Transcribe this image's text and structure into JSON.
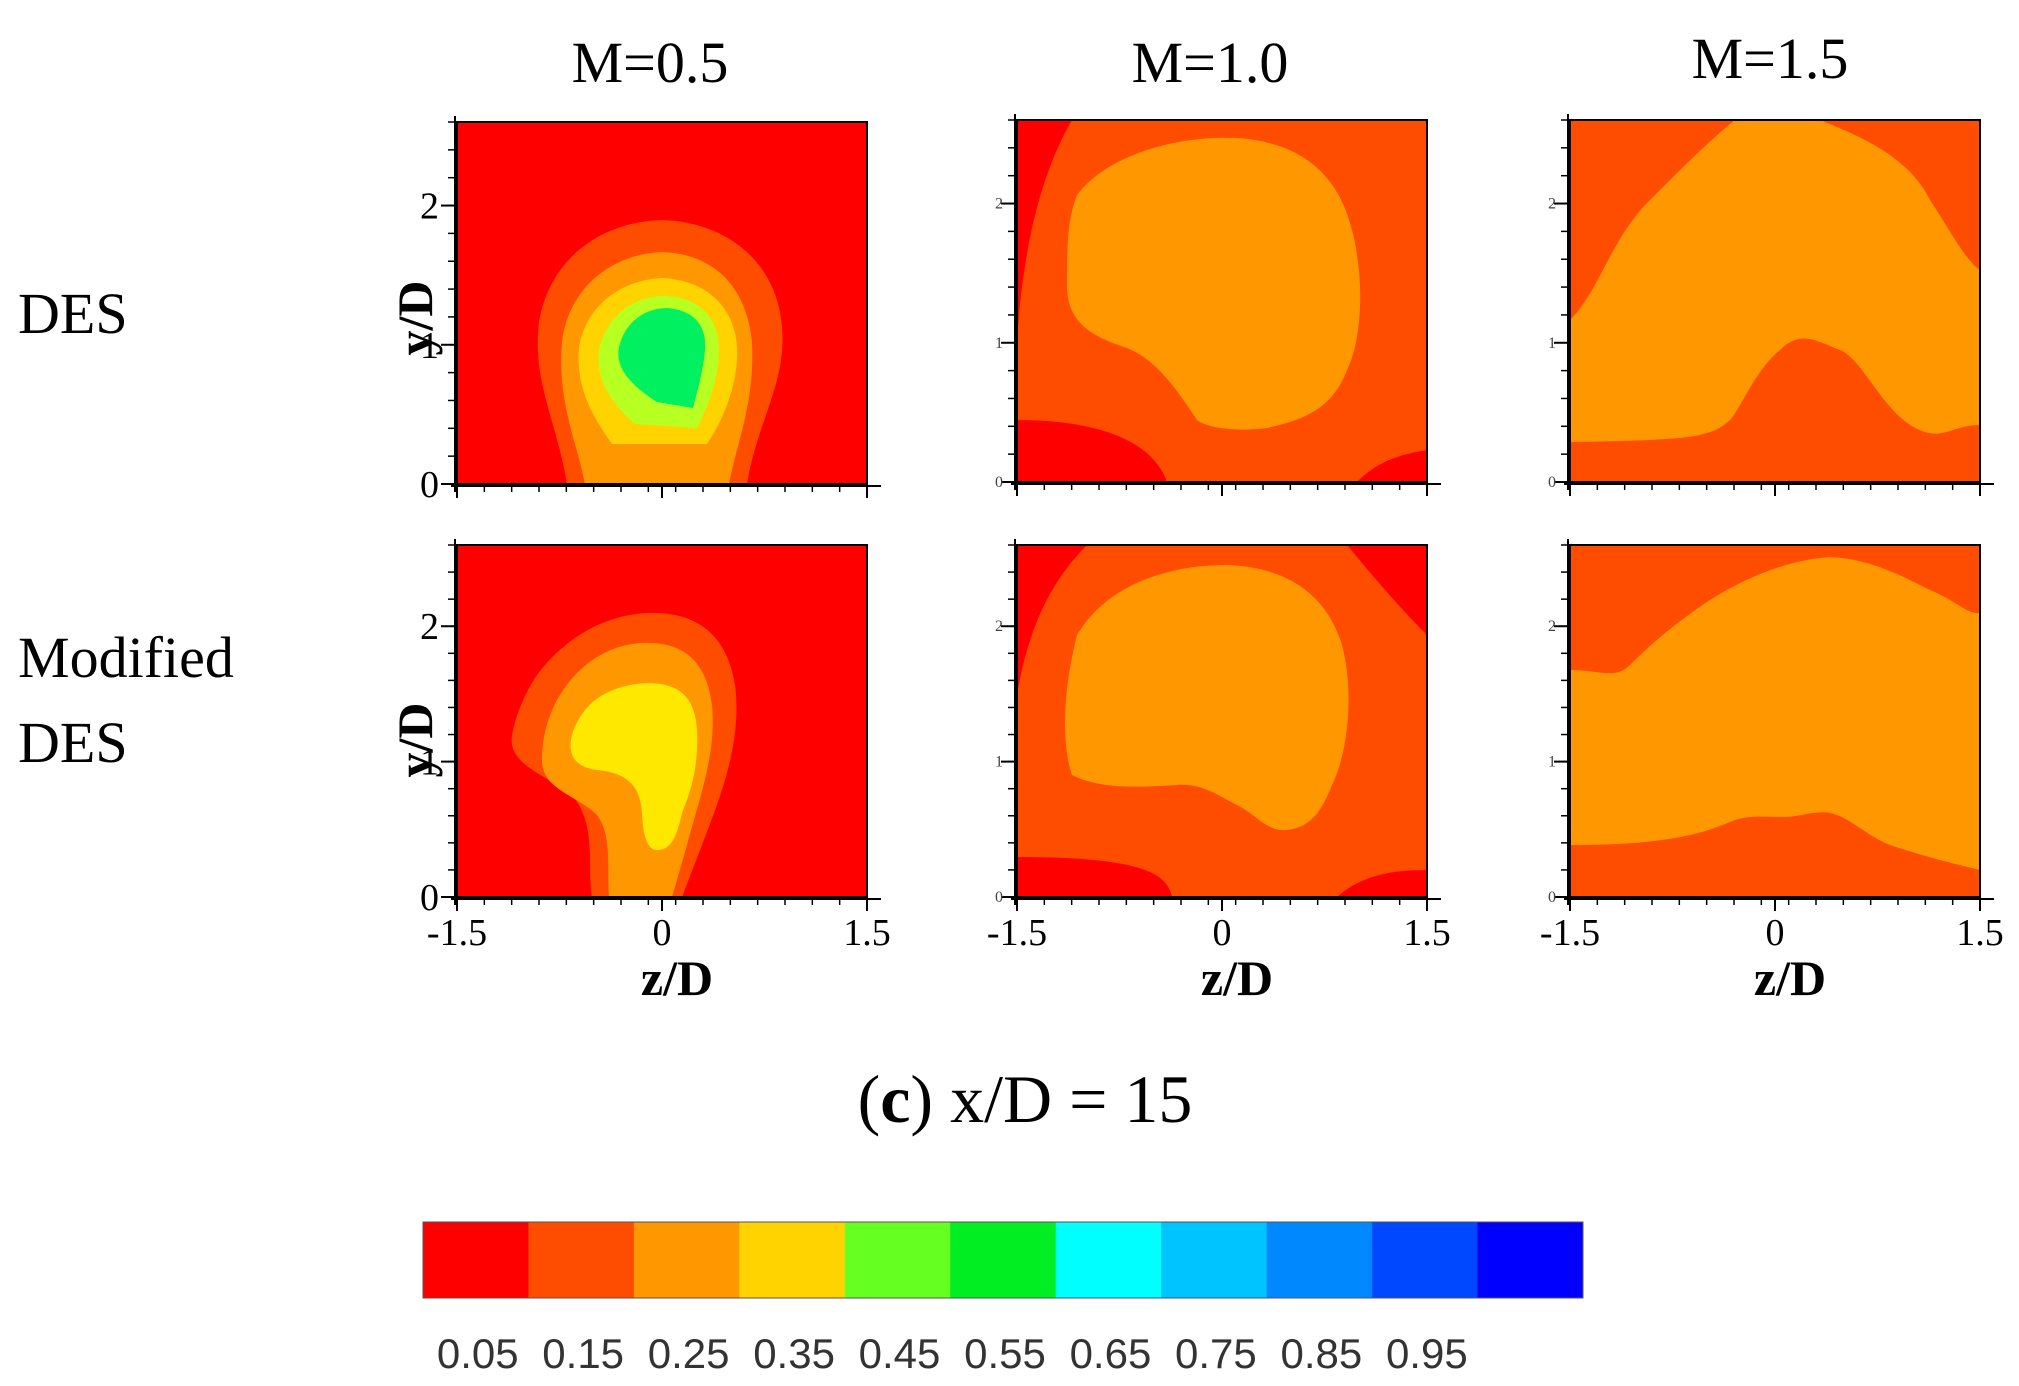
{
  "chart_data": {
    "type": "contour",
    "caption": {
      "letter": "c",
      "paren_open": "(",
      "paren_close": ")",
      "rest": " x/D = 15"
    },
    "columns": [
      "M=0.5",
      "M=1.0",
      "M=1.5"
    ],
    "rows": [
      {
        "label_lines": [
          "DES"
        ]
      },
      {
        "label_lines": [
          "Modified",
          "DES"
        ]
      }
    ],
    "xlabel": "z/D",
    "ylabel": "y/D",
    "xlim": [
      -1.5,
      1.5
    ],
    "ylim": [
      0,
      2.6
    ],
    "x_ticks": [
      {
        "value": -1.5,
        "label": "-1.5"
      },
      {
        "value": 0,
        "label": "0"
      },
      {
        "value": 1.5,
        "label": "1.5"
      }
    ],
    "y_ticks": [
      {
        "value": 0,
        "label": "0"
      },
      {
        "value": 1,
        "label": "1"
      },
      {
        "value": 2,
        "label": "2"
      }
    ],
    "colorbar": {
      "colors": [
        "#ff0000",
        "#ff4d00",
        "#ff9800",
        "#ffd300",
        "#66ff22",
        "#00ee22",
        "#00ffff",
        "#00c4ff",
        "#0088ff",
        "#0048ff",
        "#0000ff"
      ],
      "labels": [
        "0.05",
        "0.15",
        "0.25",
        "0.35",
        "0.45",
        "0.55",
        "0.65",
        "0.75",
        "0.85",
        "0.95"
      ]
    }
  }
}
